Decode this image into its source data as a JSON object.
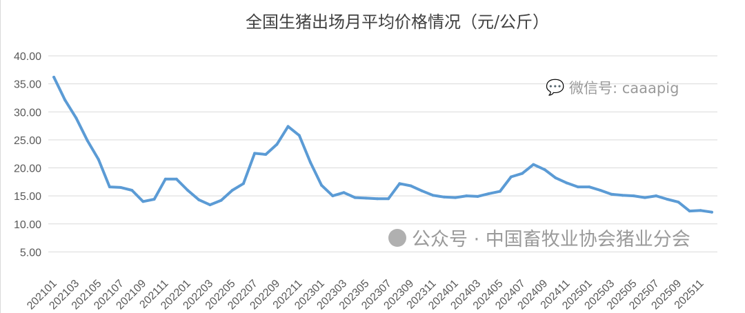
{
  "chart_data": {
    "type": "line",
    "title": "全国生猪出场月平均价格情况（元/公斤）",
    "xlabel": "",
    "ylabel": "",
    "ylim": [
      0,
      40
    ],
    "y_ticks": [
      "5.00",
      "10.00",
      "15.00",
      "20.00",
      "25.00",
      "30.00",
      "35.00",
      "40.00"
    ],
    "grid": true,
    "color": "#5b9bd5",
    "x": [
      "202101",
      "202102",
      "202103",
      "202104",
      "202105",
      "202106",
      "202107",
      "202108",
      "202109",
      "202110",
      "202111",
      "202112",
      "202201",
      "202202",
      "202203",
      "202204",
      "202205",
      "202206",
      "202207",
      "202208",
      "202209",
      "202210",
      "202211",
      "202212",
      "202301",
      "202302",
      "202303",
      "202304",
      "202305",
      "202306",
      "202307",
      "202308",
      "202309",
      "202310",
      "202311",
      "202312",
      "202401",
      "202402",
      "202403",
      "202404",
      "202405",
      "202406",
      "202407",
      "202408",
      "202409",
      "202410",
      "202411",
      "202412",
      "202501",
      "202502",
      "202503",
      "202504",
      "202505",
      "202506",
      "202507",
      "202508",
      "202509",
      "202510",
      "202511",
      "202512"
    ],
    "x_tick_labels": [
      "202101",
      "202103",
      "202105",
      "202107",
      "202109",
      "202111",
      "202201",
      "202203",
      "202205",
      "202207",
      "202209",
      "202211",
      "202301",
      "202303",
      "202305",
      "202307",
      "202309",
      "202311",
      "202401",
      "202403",
      "202405",
      "202407",
      "202409",
      "202411",
      "202501",
      "202503",
      "202505",
      "202507",
      "202509",
      "202511"
    ],
    "values": [
      36.2,
      32.1,
      28.9,
      24.9,
      21.5,
      16.6,
      16.5,
      16.0,
      14.0,
      14.4,
      18.0,
      18.0,
      16.0,
      14.3,
      13.4,
      14.2,
      16.0,
      17.2,
      22.6,
      22.4,
      24.2,
      27.4,
      25.8,
      21.0,
      16.9,
      15.0,
      15.6,
      14.7,
      14.6,
      14.5,
      14.5,
      17.2,
      16.8,
      15.9,
      15.1,
      14.8,
      14.7,
      15.0,
      14.9,
      15.4,
      15.8,
      18.4,
      19.0,
      20.6,
      19.7,
      18.2,
      17.3,
      16.6,
      16.6,
      16.0,
      15.3,
      15.1,
      15.0,
      14.7,
      15.0,
      14.4,
      13.9,
      12.3,
      12.4,
      12.1
    ]
  },
  "watermarks": {
    "wechat": "微信号: caaapig",
    "account": "公众号 · 中国畜牧业协会猪业分会"
  }
}
